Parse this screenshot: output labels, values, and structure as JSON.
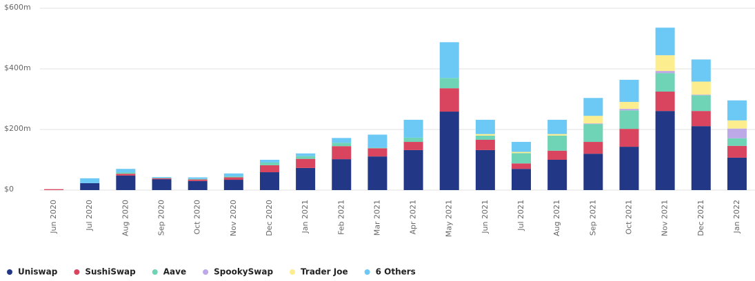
{
  "chart_data": {
    "type": "bar",
    "stacked": true,
    "categories": [
      "Jun 2020",
      "Jul 2020",
      "Aug 2020",
      "Sep 2020",
      "Oct 2020",
      "Nov 2020",
      "Dec 2020",
      "Jan 2021",
      "Feb 2021",
      "Mar 2021",
      "Apr 2021",
      "May 2021",
      "Jun 2021",
      "Jul 2021",
      "Aug 2021",
      "Sep 2021",
      "Oct 2021",
      "Nov 2021",
      "Dec 2021",
      "Jan 2022"
    ],
    "series": [
      {
        "name": "Uniswap",
        "color": "#223886",
        "values": [
          0,
          23,
          48,
          36,
          30,
          34,
          59,
          73,
          102,
          111,
          132,
          259,
          132,
          70,
          100,
          120,
          143,
          261,
          211,
          107
        ]
      },
      {
        "name": "SushiSwap",
        "color": "#d9455f",
        "values": [
          3,
          0,
          6,
          3,
          5,
          8,
          23,
          30,
          43,
          27,
          27,
          77,
          34,
          18,
          30,
          39,
          59,
          64,
          50,
          39
        ]
      },
      {
        "name": "Aave",
        "color": "#6fd3b6",
        "values": [
          0,
          0,
          4,
          1,
          2,
          3,
          9,
          9,
          11,
          2,
          14,
          34,
          14,
          34,
          50,
          59,
          61,
          61,
          52,
          25
        ]
      },
      {
        "name": "SpookySwap",
        "color": "#bda8e8",
        "values": [
          0,
          0,
          0,
          0,
          0,
          0,
          0,
          0,
          0,
          0,
          0,
          0,
          0,
          0,
          0,
          2,
          5,
          7,
          2,
          32
        ]
      },
      {
        "name": "Trader Joe",
        "color": "#fcee8e",
        "values": [
          0,
          0,
          0,
          0,
          0,
          0,
          0,
          0,
          0,
          0,
          0,
          0,
          5,
          4,
          5,
          25,
          23,
          52,
          43,
          27
        ]
      },
      {
        "name": "6 Others",
        "color": "#6cc8f4",
        "values": [
          0,
          16,
          12,
          3,
          5,
          10,
          9,
          9,
          16,
          43,
          59,
          118,
          47,
          33,
          47,
          59,
          73,
          91,
          73,
          66
        ]
      }
    ],
    "ylim": [
      0,
      600
    ],
    "yticks": [
      {
        "value": 0,
        "label": "$0"
      },
      {
        "value": 200,
        "label": "$200m"
      },
      {
        "value": 400,
        "label": "$400m"
      },
      {
        "value": 600,
        "label": "$600m"
      }
    ],
    "grid": true,
    "legend": "bottom"
  }
}
